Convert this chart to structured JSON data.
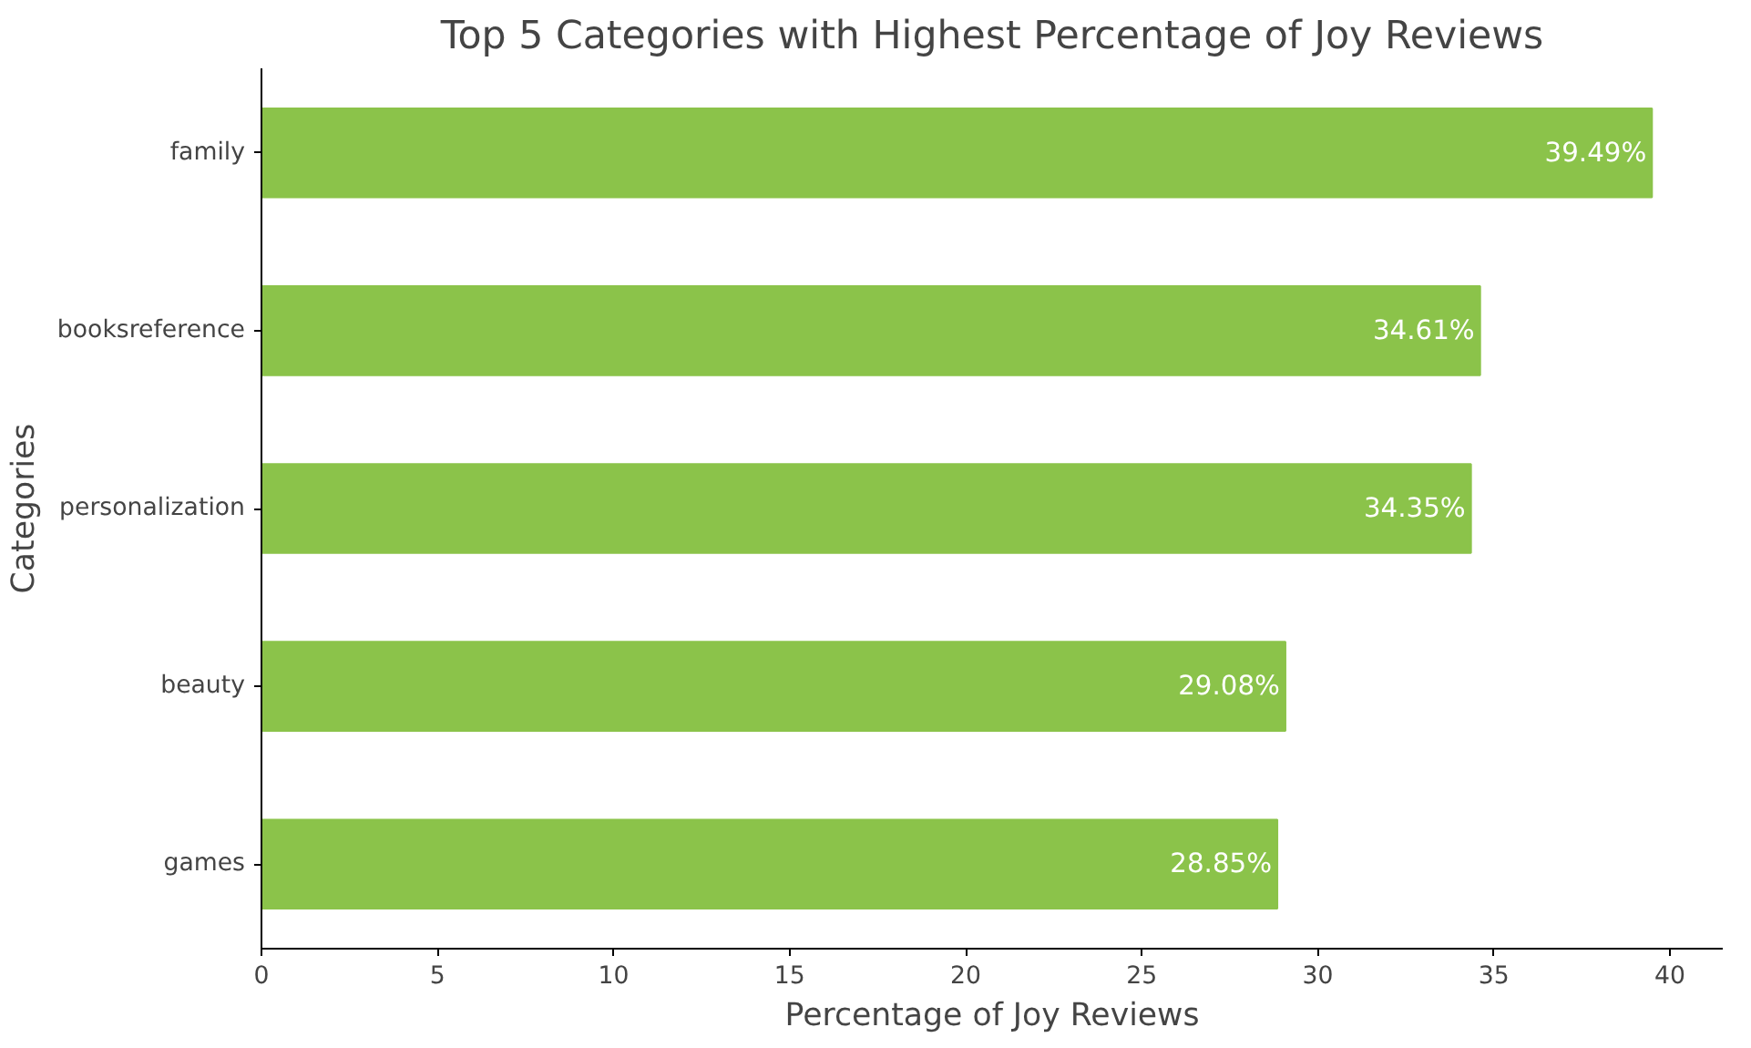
{
  "chart_data": {
    "type": "bar",
    "orientation": "horizontal",
    "title": "Top 5 Categories with Highest Percentage of Joy Reviews",
    "xlabel": "Percentage of Joy Reviews",
    "ylabel": "Categories",
    "categories": [
      "family",
      "booksreference",
      "personalization",
      "beauty",
      "games"
    ],
    "values": [
      39.49,
      34.61,
      34.35,
      29.08,
      28.85
    ],
    "value_labels": [
      "39.49%",
      "34.61%",
      "34.35%",
      "29.08%",
      "28.85%"
    ],
    "color": "#8bc34a",
    "xlim": [
      0,
      41.5
    ],
    "xticks": [
      0,
      5,
      10,
      15,
      20,
      25,
      30,
      35,
      40
    ],
    "grid": false
  }
}
